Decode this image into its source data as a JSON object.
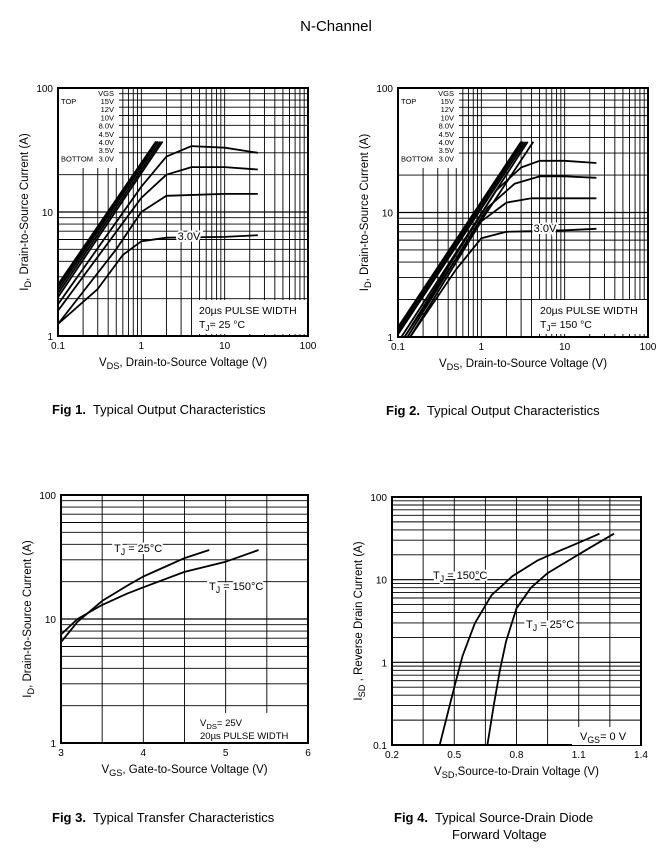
{
  "page_title": "N-Channel",
  "chart_data": [
    {
      "id": "fig1",
      "type": "line",
      "caption_num": "Fig 1.",
      "caption_text": "Typical Output Characteristics",
      "xlabel_main": "V",
      "xlabel_sub": "DS",
      "xlabel_rest": ", Drain-to-Source Voltage (V)",
      "ylabel_main": "I",
      "ylabel_sub": "D",
      "ylabel_rest": ",  Drain-to-Source Current (A)",
      "xscale": "log",
      "yscale": "log",
      "xlim": [
        0.1,
        100
      ],
      "ylim": [
        1,
        100
      ],
      "xticks": [
        "0.1",
        "1",
        "10",
        "100"
      ],
      "yticks": [
        "1",
        "10",
        "100"
      ],
      "grid": true,
      "legend": {
        "header": "VGS",
        "top_label": "TOP",
        "bottom_label": "BOTTOM",
        "entries": [
          "15V",
          "12V",
          "10V",
          "8.0V",
          "4.5V",
          "4.0V",
          "3.5V",
          "3.0V"
        ]
      },
      "annotations": [
        "20µs PULSE WIDTH",
        "T",
        "J",
        "= 25 °C",
        "3.0V"
      ],
      "series": [
        {
          "name": "15V",
          "x": [
            0.1,
            1.5
          ],
          "y": [
            2.6,
            37
          ]
        },
        {
          "name": "12V",
          "x": [
            0.1,
            1.55
          ],
          "y": [
            2.5,
            37
          ]
        },
        {
          "name": "10V",
          "x": [
            0.1,
            1.6
          ],
          "y": [
            2.35,
            37
          ]
        },
        {
          "name": "8.0V",
          "x": [
            0.1,
            1.7
          ],
          "y": [
            2.2,
            37
          ]
        },
        {
          "name": "4.5V",
          "x": [
            0.1,
            1.8
          ],
          "y": [
            2.05,
            37
          ]
        },
        {
          "name": "4.0V",
          "x": [
            0.1,
            1.0,
            2.0,
            4.0,
            10,
            25
          ],
          "y": [
            1.8,
            16,
            28,
            34,
            33,
            30
          ]
        },
        {
          "name": "3.5V",
          "x": [
            0.1,
            1.0,
            2.0,
            4.0,
            10,
            25
          ],
          "y": [
            1.6,
            13,
            20,
            23,
            23,
            22
          ]
        },
        {
          "name": "3.0V",
          "x": [
            0.1,
            0.5,
            1.0,
            2.0,
            10,
            25
          ],
          "y": [
            1.25,
            5.0,
            10,
            13.5,
            14,
            14
          ]
        },
        {
          "name": "3.0V-low",
          "x": [
            0.1,
            0.3,
            0.6,
            1.0,
            2.0,
            10,
            25
          ],
          "y": [
            1.25,
            2.4,
            4.5,
            5.8,
            6.2,
            6.3,
            6.5
          ]
        }
      ]
    },
    {
      "id": "fig2",
      "type": "line",
      "caption_num": "Fig 2.",
      "caption_text": "Typical Output Characteristics",
      "xlabel_main": "V",
      "xlabel_sub": "DS",
      "xlabel_rest": ", Drain-to-Source Voltage (V)",
      "ylabel_main": "I",
      "ylabel_sub": "D",
      "ylabel_rest": ",  Drain-to-Source Current (A)",
      "xscale": "log",
      "yscale": "log",
      "xlim": [
        0.1,
        100
      ],
      "ylim": [
        1,
        100
      ],
      "xticks": [
        "0.1",
        "1",
        "10",
        "100"
      ],
      "yticks": [
        "1",
        "10",
        "100"
      ],
      "grid": true,
      "legend": {
        "header": "VGS",
        "top_label": "TOP",
        "bottom_label": "BOTTOM",
        "entries": [
          "15V",
          "12V",
          "10V",
          "8.0V",
          "4.5V",
          "4.0V",
          "3.5V",
          "3.0V"
        ]
      },
      "annotations": [
        "20µs PULSE WIDTH",
        "T",
        "J",
        "= 150 °C",
        "3.0V"
      ],
      "series": [
        {
          "name": "15V",
          "x": [
            0.1,
            3.0
          ],
          "y": [
            1.2,
            37
          ]
        },
        {
          "name": "12V",
          "x": [
            0.1,
            3.1
          ],
          "y": [
            1.15,
            37
          ]
        },
        {
          "name": "10V",
          "x": [
            0.1,
            3.2
          ],
          "y": [
            1.1,
            37
          ]
        },
        {
          "name": "8.0V",
          "x": [
            0.1,
            3.4
          ],
          "y": [
            1.05,
            37
          ]
        },
        {
          "name": "4.5V",
          "x": [
            0.11,
            3.6
          ],
          "y": [
            1.0,
            37
          ]
        },
        {
          "name": "4.0V",
          "x": [
            0.12,
            4.2
          ],
          "y": [
            1.0,
            37
          ]
        },
        {
          "name": "3.5V",
          "x": [
            0.12,
            1.5,
            3.0,
            5.0,
            10,
            24
          ],
          "y": [
            1.0,
            15,
            23,
            26,
            26,
            25
          ]
        },
        {
          "name": "3.0V",
          "x": [
            0.13,
            1.2,
            2.5,
            5.0,
            10,
            24
          ],
          "y": [
            1.0,
            11,
            17,
            19.5,
            19.5,
            19
          ]
        },
        {
          "name": "3.0V-mid",
          "x": [
            0.14,
            1.0,
            2.0,
            4.0,
            10,
            24
          ],
          "y": [
            1.0,
            8.5,
            12,
            13,
            13,
            13
          ]
        },
        {
          "name": "3.0V-low",
          "x": [
            0.14,
            0.5,
            1.0,
            2.0,
            10,
            24
          ],
          "y": [
            1.0,
            3.5,
            6.2,
            7.0,
            7.2,
            7.4
          ]
        }
      ]
    },
    {
      "id": "fig3",
      "type": "line",
      "caption_num": "Fig 3.",
      "caption_text": "Typical Transfer Characteristics",
      "xlabel_main": "V",
      "xlabel_sub": "GS",
      "xlabel_rest": ", Gate-to-Source Voltage (V)",
      "ylabel_main": "I",
      "ylabel_sub": "D",
      "ylabel_rest": ",  Drain-to-Source Current (A)",
      "xscale": "linear",
      "yscale": "log",
      "xlim": [
        3,
        6
      ],
      "ylim": [
        1,
        100
      ],
      "xticks": [
        "3",
        "4",
        "5",
        "6"
      ],
      "yticks": [
        "1",
        "10",
        "100"
      ],
      "grid": true,
      "annotations": [
        "V",
        "DS",
        "= 25V",
        "20µs PULSE WIDTH"
      ],
      "series": [
        {
          "name": "T",
          "sub": "J",
          "rest": " = 25°C",
          "x": [
            3.0,
            3.2,
            3.5,
            3.8,
            4.0,
            4.3,
            4.5,
            4.8
          ],
          "y": [
            6.5,
            9.5,
            14,
            18.5,
            22,
            27,
            31,
            36
          ]
        },
        {
          "name": "T",
          "sub": "J",
          "rest": " = 150°C",
          "x": [
            3.0,
            3.2,
            3.5,
            3.8,
            4.0,
            4.5,
            5.0,
            5.4
          ],
          "y": [
            7.5,
            10,
            13,
            16,
            18,
            24,
            29,
            36
          ]
        }
      ]
    },
    {
      "id": "fig4",
      "type": "line",
      "caption_num": "Fig 4.",
      "caption_text": "Typical Source-Drain Diode",
      "caption_text2": "Forward Voltage",
      "xlabel_main": "V",
      "xlabel_sub": "SD",
      "xlabel_rest": ",Source-to-Drain Voltage (V)",
      "ylabel_main": "I",
      "ylabel_sub": "SD",
      "ylabel_rest": " , Reverse Drain Current (A)",
      "xscale": "linear",
      "yscale": "log",
      "xlim": [
        0.2,
        1.4
      ],
      "ylim": [
        0.1,
        100
      ],
      "xticks": [
        "0.2",
        "0.5",
        "0.8",
        "1.1",
        "1.4"
      ],
      "yticks": [
        "0.1",
        "1",
        "10",
        "100"
      ],
      "grid": true,
      "annotations": [
        "V",
        "GS",
        "= 0 V"
      ],
      "series": [
        {
          "name": "T",
          "sub": "J",
          "rest": " = 150°C",
          "x": [
            0.43,
            0.47,
            0.5,
            0.54,
            0.6,
            0.68,
            0.78,
            0.9,
            1.0,
            1.1,
            1.2
          ],
          "y": [
            0.1,
            0.25,
            0.5,
            1.2,
            3.0,
            6.5,
            11,
            17,
            22,
            28,
            36
          ]
        },
        {
          "name": "T",
          "sub": "J",
          "rest": " = 25°C",
          "x": [
            0.66,
            0.69,
            0.72,
            0.75,
            0.8,
            0.87,
            0.95,
            1.05,
            1.15,
            1.27
          ],
          "y": [
            0.1,
            0.3,
            0.8,
            1.8,
            4.5,
            8,
            12,
            17,
            24,
            36
          ]
        }
      ]
    }
  ]
}
